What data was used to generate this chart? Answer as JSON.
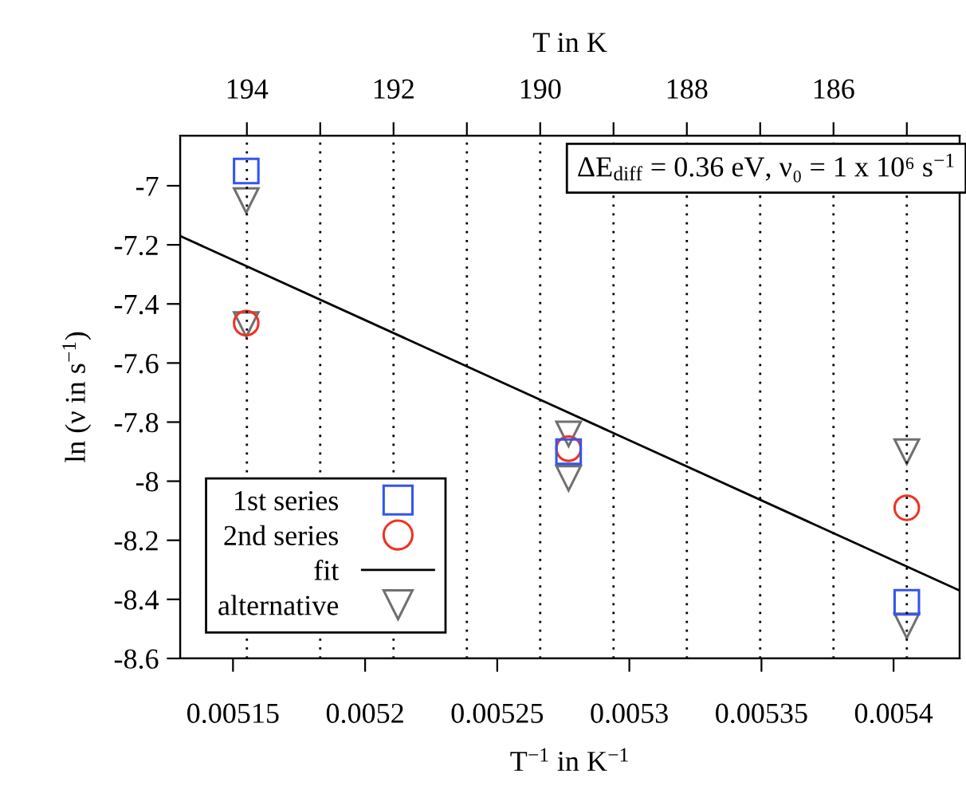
{
  "chart_data": {
    "type": "scatter",
    "xlabel": "T$^{−1}$ in K$^{−1}$",
    "ylabel": "ln (ν in s$^{−1}$)",
    "x2label": "T in K",
    "xlim": [
      0.00513,
      0.005425
    ],
    "xticks": [
      0.00515,
      0.0052,
      0.00525,
      0.0053,
      0.00535,
      0.0054
    ],
    "ylim": [
      -8.6,
      -6.83
    ],
    "yticks": [
      -7,
      -7.2,
      -7.4,
      -7.6,
      -7.8,
      -8,
      -8.2,
      -8.4,
      -8.6
    ],
    "x2lim": [
      194.91,
      184.28
    ],
    "x2ticks": [
      194,
      {
        "value": 193,
        "label": null
      },
      192,
      {
        "value": 191,
        "label": null
      },
      190,
      {
        "value": 189,
        "label": null
      },
      188,
      {
        "value": 187,
        "label": null
      },
      186,
      {
        "value": 185,
        "label": null
      }
    ],
    "grid": "x",
    "legend": "bottom left",
    "series": [
      {
        "name": "1st series",
        "color": "#3355ee",
        "marker": "square",
        "x": [
          0.005155,
          0.005277,
          0.005405
        ],
        "values": [
          -6.95,
          -7.9,
          -8.41
        ]
      },
      {
        "name": "2nd series",
        "color": "#ee3322",
        "marker": "circle",
        "x": [
          0.005155,
          0.005277,
          0.005405
        ],
        "values": [
          -7.465,
          -7.89,
          -8.09
        ]
      },
      {
        "name": "fit",
        "type": "line",
        "color": "#000000",
        "marker": "none",
        "line_style": "solid",
        "x": [
          0.00513,
          0.005425
        ],
        "values": [
          -7.17,
          -8.37
        ]
      },
      {
        "name": "alternative",
        "color": "#707070",
        "marker": "triangle",
        "x": [
          0.005155,
          0.005155,
          0.005277,
          0.005277,
          0.005405,
          0.005405
        ],
        "values": [
          -7.05,
          -7.47,
          -7.84,
          -7.99,
          -7.9,
          -8.49
        ]
      }
    ],
    "annotations": [
      "ΔE$_{diff}$ = 0.36 eV, ν₀ = 1 x 10⁶ s$^{−1}$"
    ]
  }
}
